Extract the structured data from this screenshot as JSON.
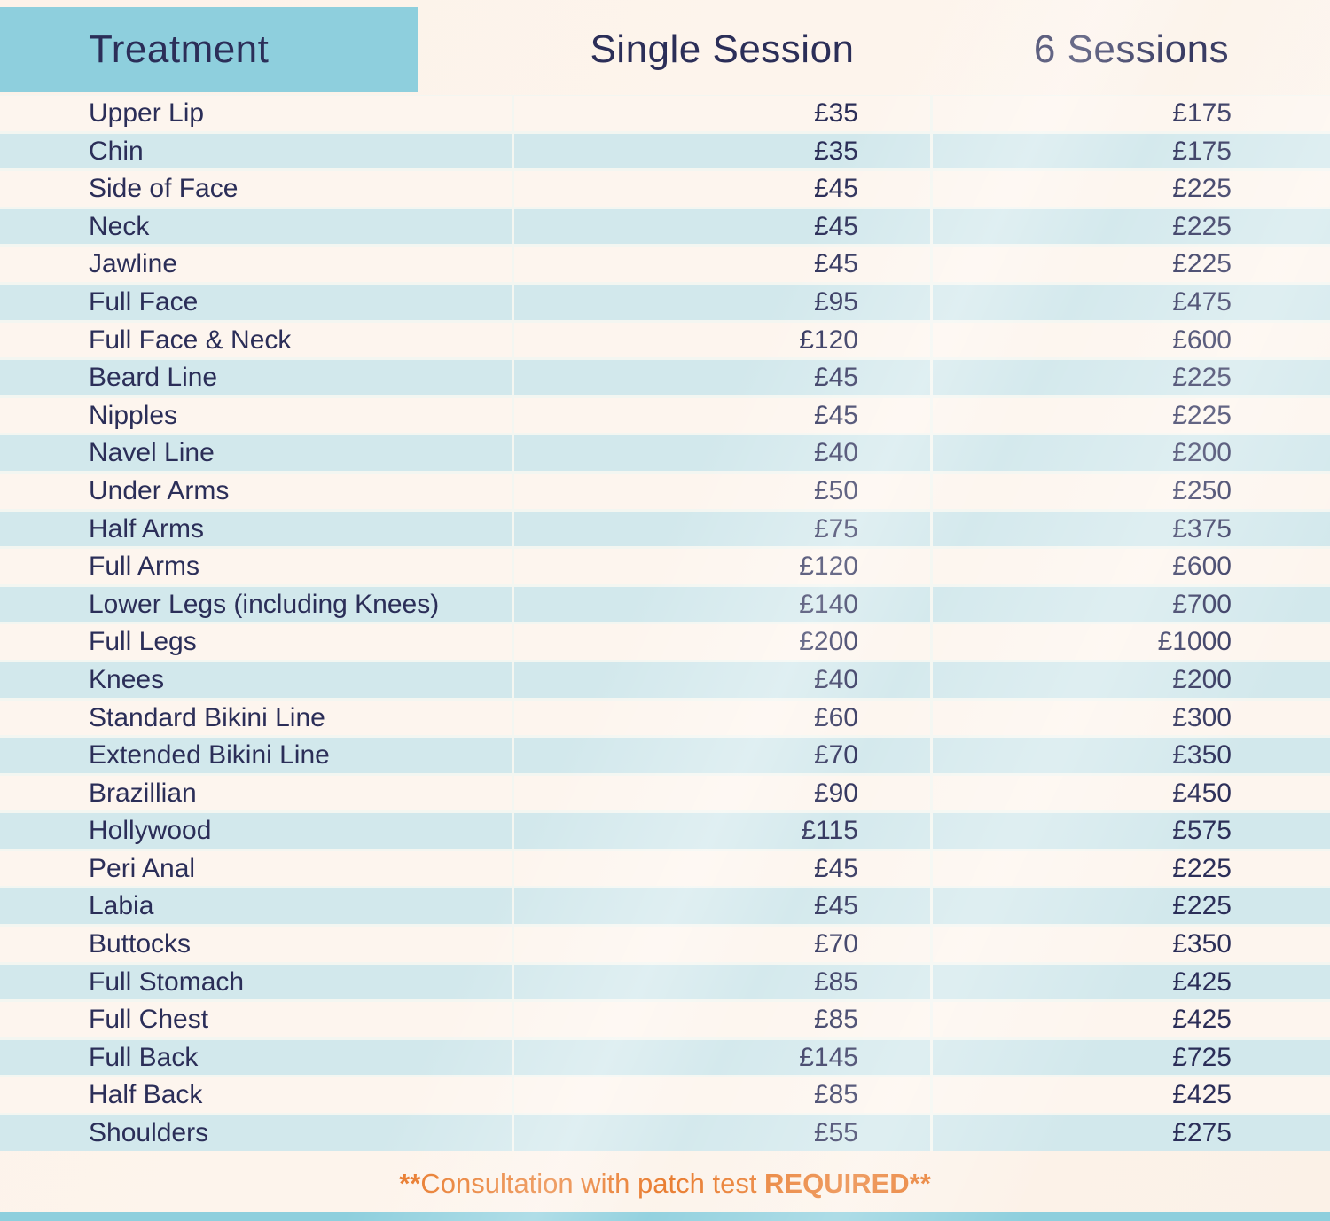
{
  "table": {
    "columns": [
      {
        "label": "Treatment"
      },
      {
        "label": "Single Session"
      },
      {
        "label": "6 Sessions"
      }
    ],
    "rows": [
      {
        "treatment": "Upper Lip",
        "single": "£35",
        "six": "£175"
      },
      {
        "treatment": "Chin",
        "single": "£35",
        "six": "£175"
      },
      {
        "treatment": "Side of Face",
        "single": "£45",
        "six": "£225"
      },
      {
        "treatment": "Neck",
        "single": "£45",
        "six": "£225"
      },
      {
        "treatment": "Jawline",
        "single": "£45",
        "six": "£225"
      },
      {
        "treatment": "Full Face",
        "single": "£95",
        "six": "£475"
      },
      {
        "treatment": "Full Face & Neck",
        "single": "£120",
        "six": "£600"
      },
      {
        "treatment": "Beard Line",
        "single": "£45",
        "six": "£225"
      },
      {
        "treatment": "Nipples",
        "single": "£45",
        "six": "£225"
      },
      {
        "treatment": "Navel Line",
        "single": "£40",
        "six": "£200"
      },
      {
        "treatment": "Under Arms",
        "single": "£50",
        "six": "£250"
      },
      {
        "treatment": "Half Arms",
        "single": "£75",
        "six": "£375"
      },
      {
        "treatment": "Full Arms",
        "single": "£120",
        "six": "£600"
      },
      {
        "treatment": "Lower Legs (including Knees)",
        "single": "£140",
        "six": "£700"
      },
      {
        "treatment": "Full Legs",
        "single": "£200",
        "six": "£1000"
      },
      {
        "treatment": "Knees",
        "single": "£40",
        "six": "£200"
      },
      {
        "treatment": "Standard Bikini Line",
        "single": "£60",
        "six": "£300"
      },
      {
        "treatment": "Extended Bikini Line",
        "single": "£70",
        "six": "£350"
      },
      {
        "treatment": "Brazillian",
        "single": "£90",
        "six": "£450"
      },
      {
        "treatment": "Hollywood",
        "single": "£115",
        "six": "£575"
      },
      {
        "treatment": "Peri Anal",
        "single": "£45",
        "six": "£225"
      },
      {
        "treatment": "Labia",
        "single": "£45",
        "six": "£225"
      },
      {
        "treatment": "Buttocks",
        "single": "£70",
        "six": "£350"
      },
      {
        "treatment": "Full Stomach",
        "single": "£85",
        "six": "£425"
      },
      {
        "treatment": "Full Chest",
        "single": "£85",
        "six": "£425"
      },
      {
        "treatment": "Full Back",
        "single": "£145",
        "six": "£725"
      },
      {
        "treatment": "Half Back",
        "single": "£85",
        "six": "£425"
      },
      {
        "treatment": "Shoulders",
        "single": "£55",
        "six": "£275"
      }
    ]
  },
  "footer": {
    "stars_leading": "**",
    "normal_text": "Consultation with patch test ",
    "bold_text": "REQUIRED**"
  },
  "colors": {
    "header_teal": "#8ecfdd",
    "row_blue": "#d2e8ec",
    "row_cream": "#fdf5ee",
    "text_navy": "#2b2e58",
    "accent_orange": "#e87727"
  }
}
